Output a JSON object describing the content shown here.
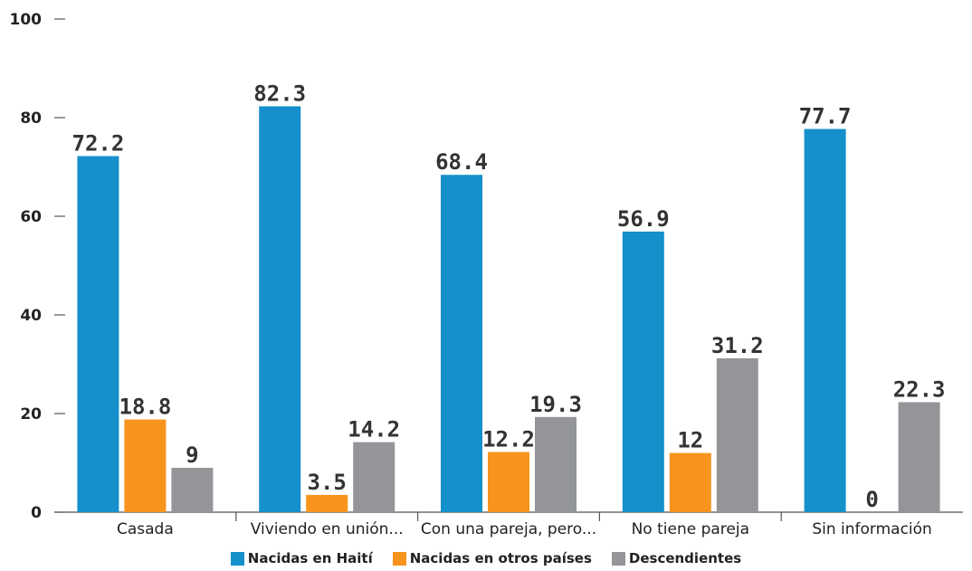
{
  "chart_data": {
    "type": "bar",
    "categories": [
      "Casada",
      "Viviendo en unión...",
      "Con una pareja, pero...",
      "No tiene pareja",
      "Sin información"
    ],
    "series": [
      {
        "name": "Nacidas en Haití",
        "color": "#1590cb",
        "values": [
          72.2,
          82.3,
          68.4,
          56.9,
          77.7
        ],
        "labels": [
          "72.2",
          "82.3",
          "68.4",
          "56.9",
          "77.7"
        ]
      },
      {
        "name": "Nacidas en otros países",
        "color": "#f7941d",
        "values": [
          18.8,
          3.5,
          12.2,
          12,
          0
        ],
        "labels": [
          "18.8",
          "3.5",
          "12.2",
          "12",
          "0"
        ]
      },
      {
        "name": "Descendientes",
        "color": "#939598",
        "values": [
          9,
          14.2,
          19.3,
          31.2,
          22.3
        ],
        "labels": [
          "9",
          "14.2",
          "19.3",
          "31.2",
          "22.3"
        ]
      }
    ],
    "yticks": [
      "0",
      "20",
      "40",
      "60",
      "80",
      "100"
    ],
    "ylim": [
      0,
      100
    ],
    "grid": false,
    "legend": "bottom"
  }
}
